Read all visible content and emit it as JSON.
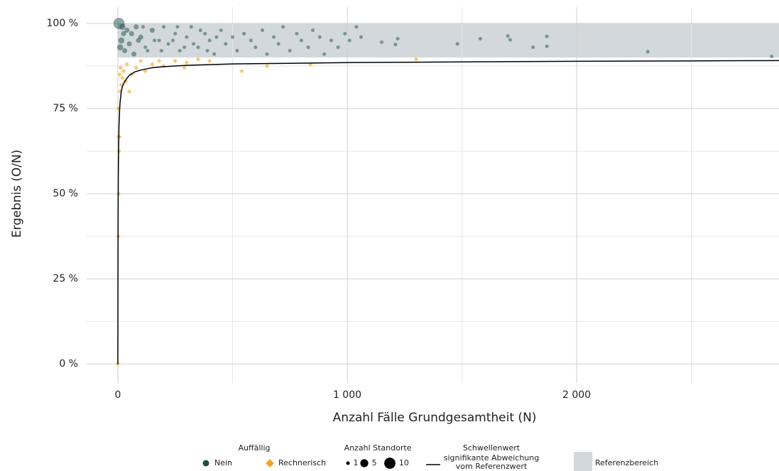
{
  "chart_data": {
    "type": "scatter",
    "x_label": "Anzahl Fälle Grundgesamtheit (N)",
    "y_label": "Ergebnis (O/N)",
    "xlim": [
      -136,
      2882
    ],
    "ylim": [
      -5.6,
      104.8
    ],
    "xticks": [
      0,
      {
        "value": 1000,
        "label": "1 000"
      },
      {
        "value": 2000,
        "label": "2 000"
      }
    ],
    "yticks": [
      {
        "value": 0,
        "label": "0 %"
      },
      {
        "value": 25,
        "label": "25 %"
      },
      {
        "value": 50,
        "label": "50 %"
      },
      {
        "value": 75,
        "label": "75 %"
      },
      {
        "value": 100,
        "label": "100 %"
      }
    ],
    "x_minor_ticks": [
      500,
      1500,
      2500
    ],
    "y_minor_ticks": [
      12.5,
      37.5,
      62.5,
      87.5
    ],
    "grid": true,
    "reference_range": [
      90,
      100
    ],
    "reference_color": "#d3d8dc",
    "threshold": {
      "x": [
        0,
        1,
        2,
        3,
        5,
        8,
        10,
        15,
        20,
        30,
        50,
        75,
        100,
        150,
        200,
        300,
        500,
        750,
        1000,
        1500,
        2000,
        2500,
        2882
      ],
      "y": [
        0,
        40,
        55,
        62,
        70,
        75,
        77,
        80,
        81.5,
        83,
        84.8,
        85.8,
        86.3,
        87,
        87.3,
        87.7,
        88.1,
        88.3,
        88.5,
        88.7,
        88.9,
        89,
        89.1
      ],
      "color": "#000000"
    },
    "legend_color_title": "Auffällig",
    "legend_size_title": "Anzahl Standorte",
    "legend_size_values": [
      1,
      5,
      10
    ],
    "legend_threshold_title": "Schwellenwert",
    "legend_threshold_label": [
      "signifikante Abweichung",
      "vom Referenzwert"
    ],
    "legend_reference_label": "Referenzbereich",
    "series": [
      {
        "name": "Nein",
        "color": "#1b5049",
        "marker": "circle",
        "x": [
          5,
          20,
          40,
          60,
          80,
          100,
          120,
          150,
          180,
          200,
          220,
          250,
          270,
          300,
          320,
          350,
          380,
          400,
          420,
          450,
          470,
          500,
          520,
          550,
          580,
          600,
          630,
          650,
          680,
          700,
          720,
          750,
          780,
          800,
          830,
          850,
          880,
          900,
          930,
          960,
          990,
          1010,
          1040,
          1060,
          1150,
          1220,
          1210,
          1480,
          1580,
          1700,
          1710,
          1810,
          1870,
          1870,
          2310,
          2850,
          10,
          15,
          30,
          25,
          50,
          70,
          90,
          110,
          130,
          160,
          190,
          240,
          260,
          290,
          330,
          360,
          390,
          430
        ],
        "values": [
          100,
          99,
          98,
          97,
          99,
          96,
          93,
          98,
          95,
          99,
          94,
          97,
          92,
          96,
          99,
          93,
          97,
          95,
          91,
          98,
          94,
          96,
          92,
          97,
          95,
          93,
          98,
          91,
          96,
          94,
          99,
          92,
          97,
          95,
          93,
          98,
          96,
          91,
          95,
          93,
          97,
          95,
          99,
          96,
          94.5,
          95.5,
          93.8,
          94,
          95.5,
          96.3,
          95.2,
          93,
          96.2,
          93.3,
          91.7,
          90.3,
          93,
          95,
          92,
          97,
          94,
          91,
          95,
          99,
          92,
          95,
          92,
          95,
          99,
          93,
          94,
          98,
          92,
          96
        ],
        "sizes": [
          10,
          3,
          2,
          2,
          2,
          2,
          1,
          2,
          1,
          1,
          1,
          1,
          1,
          1,
          1,
          1,
          1,
          1,
          1,
          1,
          1,
          1,
          1,
          1,
          1,
          1,
          1,
          1,
          1,
          1,
          1,
          1,
          1,
          1,
          1,
          1,
          1,
          1,
          1,
          1,
          1,
          1,
          1,
          1,
          1,
          1,
          1,
          1,
          1,
          1,
          1,
          1,
          1,
          1,
          1,
          1,
          3,
          3,
          2,
          2,
          2,
          2,
          2,
          1,
          1,
          1,
          1,
          1,
          1,
          1,
          1,
          1,
          1,
          1
        ]
      },
      {
        "name": "Rechnerisch",
        "color": "#f0a51c",
        "marker": "diamond",
        "x": [
          0,
          2,
          3,
          5,
          4,
          6,
          3,
          10,
          15,
          20,
          8,
          12,
          25,
          35,
          50,
          40,
          60,
          80,
          100,
          120,
          150,
          180,
          200,
          250,
          300,
          350,
          400,
          540,
          650,
          840,
          1300,
          290
        ],
        "values": [
          0,
          37.5,
          50,
          62.5,
          66.7,
          66.7,
          75,
          80,
          82,
          84,
          85,
          87,
          86,
          83,
          80,
          88,
          85,
          87,
          89,
          86,
          88,
          89,
          87.5,
          89,
          88.5,
          89.5,
          89,
          86,
          87.5,
          88,
          89.5,
          87
        ],
        "sizes": [
          1,
          1,
          1,
          1,
          1,
          1,
          1,
          1,
          1,
          1,
          1,
          1,
          1,
          1,
          1,
          1,
          1,
          1,
          1,
          1,
          1,
          1,
          1,
          1,
          1,
          1,
          1,
          1,
          1,
          1,
          1,
          1
        ]
      }
    ]
  }
}
